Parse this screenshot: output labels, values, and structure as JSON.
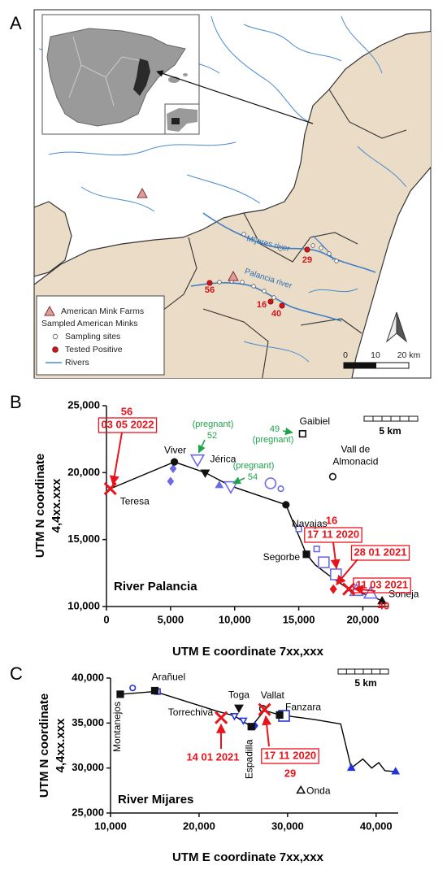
{
  "map": {
    "panel": "A",
    "legend": [
      "American Mink Farms",
      "Sampled American Minks",
      "Sampling sites",
      "Tested Positive",
      "Rivers"
    ],
    "river_labels": [
      "Mijares river",
      "Palancia river"
    ],
    "cases": [
      56,
      16,
      40,
      29
    ],
    "scale": [
      0,
      10,
      "20 km"
    ]
  },
  "chart_data": [
    {
      "type": "line",
      "panel": "B",
      "title": "River Palancia",
      "xlabel": "UTM E coordinate 7xx,xxx",
      "ylabel": [
        "UTM N coordinate",
        "4,4xx.xxx"
      ],
      "scale_label": "5 km",
      "xlim": [
        0,
        22000
      ],
      "xticks": [
        0,
        {
          "value": 5000,
          "label": "5,000"
        },
        {
          "value": 10000,
          "label": "10,000"
        },
        {
          "value": 15000,
          "label": "15,000"
        },
        {
          "value": 20000,
          "label": "20,000"
        }
      ],
      "ylim": [
        10000,
        25000
      ],
      "yticks": [
        {
          "value": 10000,
          "label": "10,000"
        },
        {
          "value": 15000,
          "label": "15,000"
        },
        {
          "value": 20000,
          "label": "20,000"
        },
        {
          "value": 25000,
          "label": "25,000"
        }
      ],
      "series": [
        {
          "color": "#000000",
          "x": [
            300,
            5300,
            7700,
            9700,
            14000,
            15600,
            16300,
            17400,
            18900,
            19800,
            20700,
            21500
          ],
          "values": [
            18800,
            20800,
            20000,
            19000,
            17600,
            13900,
            13100,
            12300,
            11300,
            11000,
            10800,
            10400
          ]
        }
      ],
      "sites": [
        {
          "name": "Teresa",
          "x": 300,
          "y": 18800
        },
        {
          "name": "Viver",
          "x": 5300,
          "y": 20800,
          "marker": "circle",
          "filled": true
        },
        {
          "name": "Jérica",
          "x": 7700,
          "y": 20000,
          "marker": "triangle-down",
          "filled": true
        },
        {
          "name": "Navajas",
          "x": 14000,
          "y": 17600,
          "marker": "circle",
          "filled": true
        },
        {
          "name": "Segorbe",
          "x": 15600,
          "y": 13900,
          "marker": "square",
          "filled": true
        },
        {
          "name": "Soneja",
          "x": 21500,
          "y": 10400,
          "marker": "triangle",
          "filled": true
        },
        {
          "name": "Gaibiel",
          "x": 15300,
          "y": 22900,
          "marker": "square",
          "filled": false
        },
        {
          "name": [
            "Vall de",
            "Almonacid"
          ],
          "x": 17650,
          "y": 19700,
          "marker": "circle",
          "filled": false
        }
      ],
      "sample_color": "#6b6be8",
      "samples": [
        {
          "x": 5200,
          "y": 20300,
          "shape": "diamond",
          "filled": true
        },
        {
          "x": 5000,
          "y": 19350,
          "shape": "diamond",
          "filled": true
        },
        {
          "x": 8800,
          "y": 19050,
          "shape": "triangle",
          "filled": true
        },
        {
          "x": 7100,
          "y": 21000,
          "shape": "triangle-down",
          "filled": false,
          "size": "large"
        },
        {
          "x": 9700,
          "y": 19000,
          "shape": "triangle-down",
          "filled": false,
          "size": "large"
        },
        {
          "x": 12800,
          "y": 19200,
          "shape": "circle",
          "filled": false,
          "size": "large"
        },
        {
          "x": 13600,
          "y": 18800,
          "shape": "circle",
          "filled": false
        },
        {
          "x": 15000,
          "y": 15800,
          "shape": "square",
          "filled": false
        },
        {
          "x": 16400,
          "y": 14300,
          "shape": "square",
          "filled": false
        },
        {
          "x": 16950,
          "y": 13300,
          "shape": "square",
          "filled": false,
          "size": "large"
        },
        {
          "x": 17900,
          "y": 12400,
          "shape": "square",
          "filled": false,
          "size": "large"
        },
        {
          "x": 19500,
          "y": 11150,
          "shape": "triangle",
          "filled": false,
          "size": "large"
        },
        {
          "x": 20600,
          "y": 10950,
          "shape": "triangle",
          "filled": false,
          "size": "large"
        }
      ],
      "positive_color": "#e8141c",
      "positives": [
        {
          "id": 56,
          "date": "03 05 2022",
          "x": 300,
          "y": 18800,
          "marker": "x",
          "boxed": true
        },
        {
          "id": 16,
          "date": "17 11 2020",
          "x": 17900,
          "y": 12400,
          "boxed": true
        },
        {
          "date": "28 01 2021",
          "x": 17700,
          "y": 11300,
          "marker": "diamond",
          "boxed": true
        },
        {
          "id": 40,
          "date": "11 03 2021",
          "x": 18900,
          "y": 11300,
          "marker": "x",
          "boxed": true
        }
      ],
      "note_color": "#1fa34a",
      "notes": [
        {
          "id": 52,
          "text": "(pregnant)",
          "x": 7200,
          "y": 21500
        },
        {
          "id": 49,
          "text": "(pregnant)",
          "x": 14500,
          "y": 23000
        },
        {
          "id": 54,
          "text": "(pregnant)",
          "x": 9900,
          "y": 19200
        }
      ]
    },
    {
      "type": "line",
      "panel": "C",
      "title": "River Mijares",
      "xlabel": "UTM E coordinate 7xx,xxx",
      "ylabel": [
        "UTM N coordinate",
        "4,4xx.xxx"
      ],
      "scale_label": "5 km",
      "xlim": [
        10000,
        42500
      ],
      "xticks": [
        {
          "value": 10000,
          "label": "10,000"
        },
        {
          "value": 20000,
          "label": "20,000"
        },
        {
          "value": 30000,
          "label": "30,000"
        },
        {
          "value": 40000,
          "label": "40,000"
        }
      ],
      "ylim": [
        25000,
        40000
      ],
      "yticks": [
        {
          "value": 25000,
          "label": "25,000"
        },
        {
          "value": 30000,
          "label": "30,000"
        },
        {
          "value": 35000,
          "label": "35,000"
        },
        {
          "value": 40000,
          "label": "40,000"
        }
      ],
      "series": [
        {
          "color": "#000000",
          "x": [
            11100,
            15000,
            22100,
            24000,
            25900,
            27400,
            29100,
            33000,
            36000,
            37200,
            38500,
            39500,
            40300,
            41000,
            42200
          ],
          "values": [
            38200,
            38500,
            36300,
            35800,
            34600,
            36400,
            35900,
            35400,
            34900,
            30000,
            31000,
            30000,
            30600,
            29700,
            29600
          ]
        }
      ],
      "sites": [
        {
          "name": "Montanejos",
          "x": 11100,
          "y": 38200,
          "marker": "square",
          "filled": true
        },
        {
          "name": "Arañuel",
          "x": 15000,
          "y": 38600,
          "marker": "square",
          "filled": true
        },
        {
          "name": "Torrechiva",
          "x": 22500,
          "y": 35600
        },
        {
          "name": "Toga",
          "x": 24500,
          "y": 36700,
          "marker": "triangle-down",
          "filled": true
        },
        {
          "name": "Espadilla",
          "x": 25900,
          "y": 34600,
          "marker": "square",
          "filled": true
        },
        {
          "name": "Vallat",
          "x": 27200,
          "y": 36600,
          "marker": "circle",
          "filled": false
        },
        {
          "name": "Fanzara",
          "x": 29100,
          "y": 35900,
          "marker": "square",
          "filled": true
        },
        {
          "name": "Onda",
          "x": 31500,
          "y": 27500,
          "marker": "triangle",
          "filled": false
        }
      ],
      "sample_color": "#2233dd",
      "samples": [
        {
          "x": 12500,
          "y": 38900,
          "shape": "circle",
          "filled": false
        },
        {
          "x": 15300,
          "y": 38500,
          "shape": "square",
          "filled": false
        },
        {
          "x": 24000,
          "y": 35800,
          "shape": "triangle-down",
          "filled": false
        },
        {
          "x": 25000,
          "y": 35300,
          "shape": "triangle-down",
          "filled": false
        },
        {
          "x": 26300,
          "y": 34700,
          "shape": "diamond",
          "filled": true
        },
        {
          "x": 29600,
          "y": 35800,
          "shape": "square",
          "filled": false,
          "size": "large"
        },
        {
          "x": 37200,
          "y": 30000,
          "shape": "triangle",
          "filled": true
        },
        {
          "x": 42200,
          "y": 29600,
          "shape": "triangle",
          "filled": true
        }
      ],
      "positive_color": "#e8141c",
      "positives": [
        {
          "date": "14 01 2021",
          "x": 22500,
          "y": 35600,
          "marker": "x",
          "boxed": false
        },
        {
          "id": 29,
          "date": "17 11 2020",
          "x": 27400,
          "y": 36500,
          "marker": "x",
          "boxed": true
        }
      ],
      "note_color": "#1fa34a",
      "notes": []
    }
  ]
}
